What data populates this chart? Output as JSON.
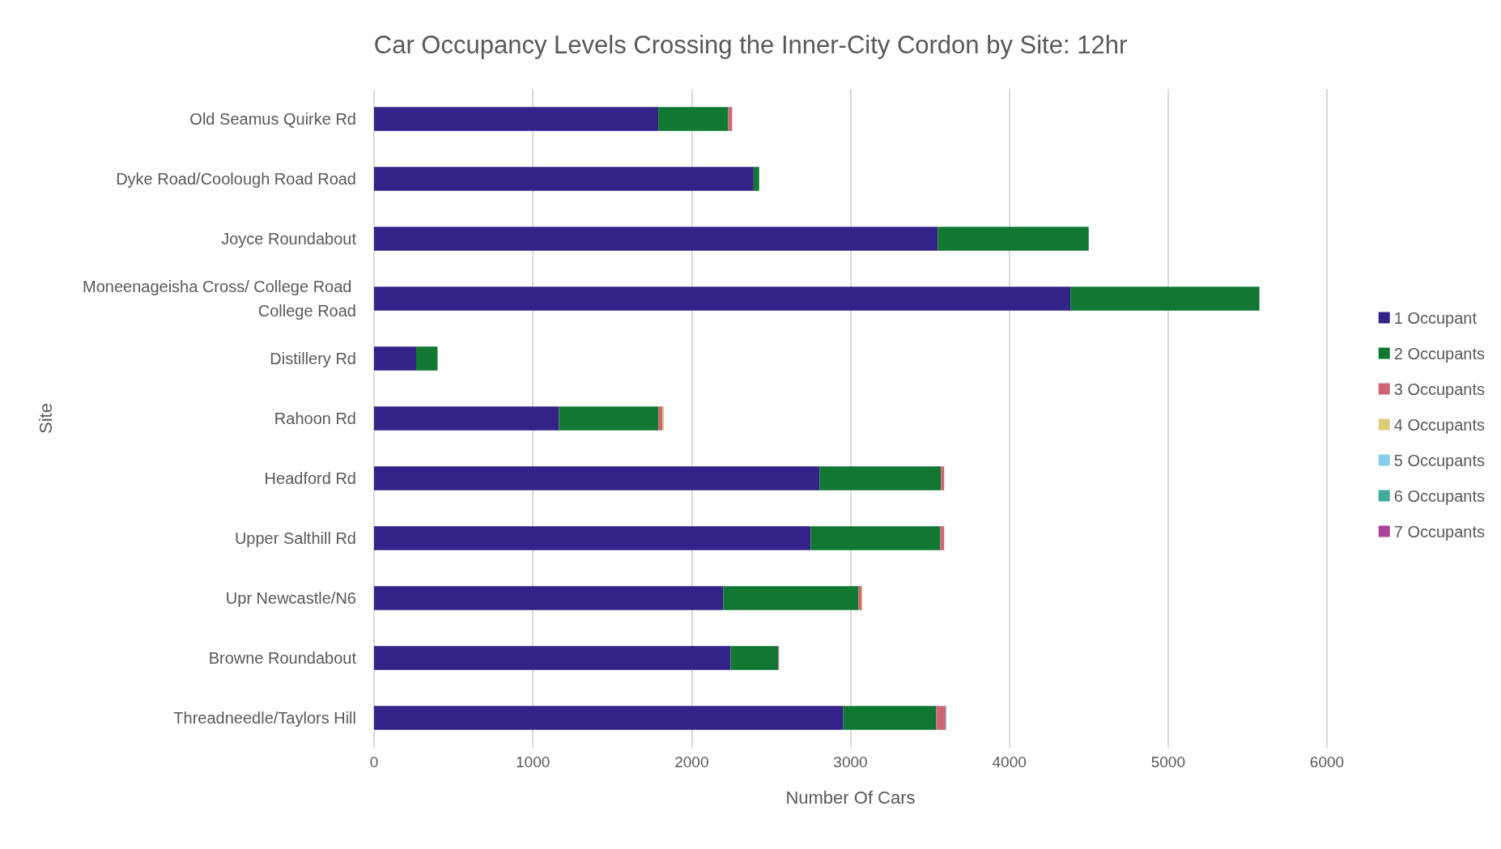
{
  "chart_data": {
    "type": "bar",
    "orientation": "horizontal",
    "stacked": true,
    "title": "Car Occupancy Levels Crossing the Inner-City Cordon by Site: 12hr",
    "xlabel": "Number Of Cars",
    "ylabel": "Site",
    "categories": [
      "Old Seamus Quirke Rd",
      "Dyke Road/Coolough Road Road",
      "Joyce Roundabout",
      "Moneenageisha Cross/ College Road College Road",
      "Distillery Rd",
      "Rahoon Rd",
      "Headford Rd",
      "Upper Salthill Rd",
      "Upr Newcastle/N6",
      "Browne Roundabout",
      "Threadneedle/Taylors Hill"
    ],
    "series": [
      {
        "name": "1 Occupant",
        "color": "#332288",
        "values": [
          1790,
          2390,
          3550,
          4385,
          265,
          1165,
          2805,
          2750,
          2200,
          2245,
          2955
        ]
      },
      {
        "name": "2 Occupants",
        "color": "#117733",
        "values": [
          440,
          35,
          950,
          1190,
          135,
          625,
          765,
          815,
          850,
          300,
          585
        ]
      },
      {
        "name": "3 Occupants",
        "color": "#cc6677",
        "values": [
          25,
          0,
          0,
          0,
          0,
          25,
          20,
          25,
          20,
          5,
          60
        ]
      },
      {
        "name": "4 Occupants",
        "color": "#ddcc77",
        "values": [
          0,
          0,
          0,
          0,
          0,
          10,
          0,
          0,
          5,
          0,
          0
        ]
      },
      {
        "name": "5 Occupants",
        "color": "#88ccee",
        "values": [
          0,
          0,
          0,
          0,
          0,
          0,
          0,
          0,
          0,
          0,
          5
        ]
      },
      {
        "name": "6 Occupants",
        "color": "#44aa99",
        "values": [
          0,
          0,
          0,
          0,
          0,
          0,
          0,
          0,
          0,
          0,
          0
        ]
      },
      {
        "name": "7 Occupants",
        "color": "#aa4499",
        "values": [
          0,
          0,
          0,
          0,
          0,
          0,
          0,
          0,
          0,
          0,
          0
        ]
      }
    ],
    "xlim": [
      0,
      6000
    ],
    "xticks": [
      0,
      1000,
      2000,
      3000,
      4000,
      5000,
      6000
    ],
    "grid": "x",
    "legend": "right"
  }
}
